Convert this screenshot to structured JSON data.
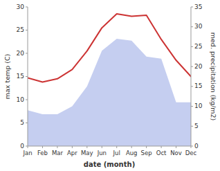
{
  "chart_data": {
    "type": "line",
    "xlabel": "date (month)",
    "ylabel": "max temp (C)",
    "y2label": "med. precipitation (kg/m2)",
    "categories": [
      "Jan",
      "Feb",
      "Mar",
      "Apr",
      "May",
      "Jun",
      "Jul",
      "Aug",
      "Sep",
      "Oct",
      "Nov",
      "Dec"
    ],
    "series": [
      {
        "type": "line",
        "axis": "y",
        "color": "#cc3333",
        "values": [
          14.7,
          13.8,
          14.5,
          16.5,
          20.5,
          25.5,
          28.5,
          28.0,
          28.2,
          23.0,
          18.5,
          15.0
        ]
      },
      {
        "type": "area",
        "axis": "y2",
        "color": "#c5cef0",
        "values": [
          9.0,
          8.0,
          8.0,
          10.0,
          15.0,
          24.0,
          27.0,
          26.5,
          22.5,
          22.0,
          11.0,
          11.0
        ]
      }
    ],
    "ylim": [
      0,
      30
    ],
    "yticks": [
      0,
      5,
      10,
      15,
      20,
      25,
      30
    ],
    "y2lim": [
      0,
      35
    ],
    "y2ticks": [
      0,
      5,
      10,
      15,
      20,
      25,
      30,
      35
    ],
    "grid": false
  }
}
